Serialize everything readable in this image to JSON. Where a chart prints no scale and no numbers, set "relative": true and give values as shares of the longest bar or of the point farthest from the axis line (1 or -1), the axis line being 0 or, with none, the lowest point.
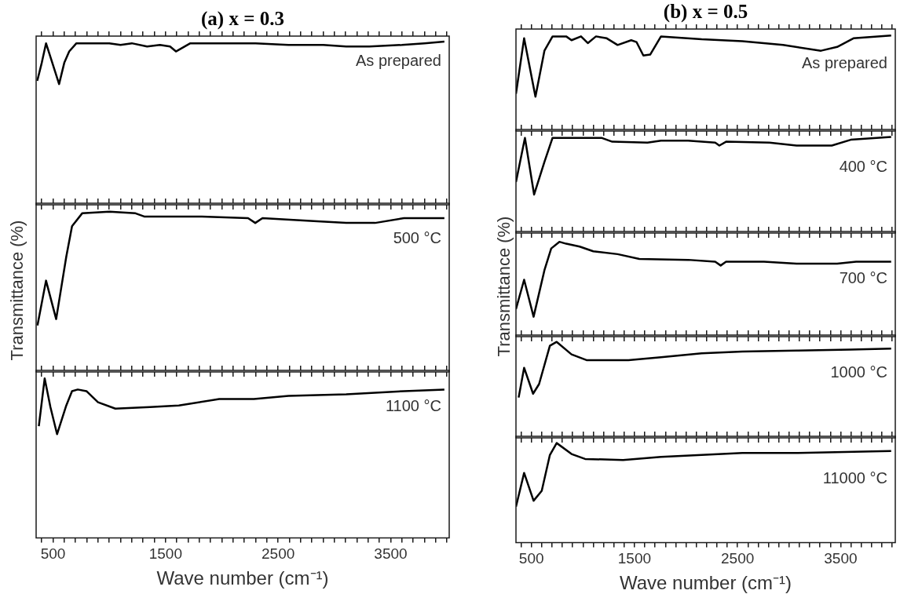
{
  "chart_data": [
    {
      "type": "line",
      "title": "(a) x = 0.3",
      "relative": true,
      "color": "#000000",
      "annotations": [
        "As prepared"
      ],
      "xlim": [
        350,
        4020
      ],
      "tick_labels": false,
      "x": [
        360,
        400,
        438,
        480,
        554,
        600,
        644,
        708,
        800,
        1000,
        1100,
        1200,
        1336,
        1450,
        1540,
        1592,
        1720,
        1977,
        2300,
        2592,
        2900,
        3105,
        3310,
        3600,
        3800,
        3977
      ],
      "values": [
        0.76,
        0.87,
        0.99,
        0.9,
        0.74,
        0.87,
        0.94,
        0.99,
        0.99,
        0.99,
        0.98,
        0.99,
        0.97,
        0.98,
        0.97,
        0.94,
        0.99,
        0.99,
        0.99,
        0.98,
        0.98,
        0.97,
        0.97,
        0.98,
        0.99,
        1
      ],
      "xticks": [
        {
          "value": 400,
          "label": null
        },
        500,
        {
          "value": 600,
          "label": null
        },
        {
          "value": 700,
          "label": null
        },
        {
          "value": 800,
          "label": null
        },
        {
          "value": 900,
          "label": null
        },
        {
          "value": 1000,
          "label": null
        },
        {
          "value": 1100,
          "label": null
        },
        {
          "value": 1200,
          "label": null
        },
        {
          "value": 1300,
          "label": null
        },
        {
          "value": 1400,
          "label": null
        },
        1500,
        {
          "value": 1600,
          "label": null
        },
        {
          "value": 1700,
          "label": null
        },
        {
          "value": 1800,
          "label": null
        },
        {
          "value": 1900,
          "label": null
        },
        {
          "value": 2000,
          "label": null
        },
        {
          "value": 2100,
          "label": null
        },
        {
          "value": 2200,
          "label": null
        },
        {
          "value": 2300,
          "label": null
        },
        {
          "value": 2400,
          "label": null
        },
        2500,
        {
          "value": 2600,
          "label": null
        },
        {
          "value": 2700,
          "label": null
        },
        {
          "value": 2800,
          "label": null
        },
        {
          "value": 2900,
          "label": null
        },
        {
          "value": 3000,
          "label": null
        },
        {
          "value": 3100,
          "label": null
        },
        {
          "value": 3200,
          "label": null
        },
        {
          "value": 3300,
          "label": null
        },
        {
          "value": 3400,
          "label": null
        },
        3500,
        {
          "value": 3600,
          "label": null
        },
        {
          "value": 3700,
          "label": null
        },
        {
          "value": 3800,
          "label": null
        },
        {
          "value": 3900,
          "label": null
        },
        {
          "value": 4000,
          "label": null
        }
      ]
    },
    {
      "type": "line",
      "ylabel": "Transmittance (%)",
      "relative": true,
      "color": "#000000",
      "annotations": [
        "500 °C"
      ],
      "xlim": [
        350,
        4020
      ],
      "tick_labels": false,
      "x": [
        362,
        438,
        528,
        618,
        669,
        759,
        1002,
        1233,
        1310,
        1823,
        2233,
        2297,
        2361,
        2848,
        3105,
        3361,
        3618,
        3977
      ],
      "values": [
        0.29,
        0.57,
        0.33,
        0.72,
        0.91,
        0.99,
        1,
        0.99,
        0.97,
        0.97,
        0.96,
        0.93,
        0.96,
        0.94,
        0.93,
        0.93,
        0.96,
        0.96
      ],
      "xticks": [
        {
          "value": 400,
          "label": null
        },
        500,
        {
          "value": 600,
          "label": null
        },
        {
          "value": 700,
          "label": null
        },
        {
          "value": 800,
          "label": null
        },
        {
          "value": 900,
          "label": null
        },
        {
          "value": 1000,
          "label": null
        },
        {
          "value": 1100,
          "label": null
        },
        {
          "value": 1200,
          "label": null
        },
        {
          "value": 1300,
          "label": null
        },
        {
          "value": 1400,
          "label": null
        },
        1500,
        {
          "value": 1600,
          "label": null
        },
        {
          "value": 1700,
          "label": null
        },
        {
          "value": 1800,
          "label": null
        },
        {
          "value": 1900,
          "label": null
        },
        {
          "value": 2000,
          "label": null
        },
        {
          "value": 2100,
          "label": null
        },
        {
          "value": 2200,
          "label": null
        },
        {
          "value": 2300,
          "label": null
        },
        {
          "value": 2400,
          "label": null
        },
        2500,
        {
          "value": 2600,
          "label": null
        },
        {
          "value": 2700,
          "label": null
        },
        {
          "value": 2800,
          "label": null
        },
        {
          "value": 2900,
          "label": null
        },
        {
          "value": 3000,
          "label": null
        },
        {
          "value": 3100,
          "label": null
        },
        {
          "value": 3200,
          "label": null
        },
        {
          "value": 3300,
          "label": null
        },
        {
          "value": 3400,
          "label": null
        },
        3500,
        {
          "value": 3600,
          "label": null
        },
        {
          "value": 3700,
          "label": null
        },
        {
          "value": 3800,
          "label": null
        },
        {
          "value": 3900,
          "label": null
        },
        {
          "value": 4000,
          "label": null
        }
      ]
    },
    {
      "type": "line",
      "xlabel": "Wave number (cm⁻¹)",
      "relative": true,
      "color": "#000000",
      "annotations": [
        "1100 °C"
      ],
      "xlim": [
        350,
        4020
      ],
      "tick_labels": "x",
      "x": [
        374,
        426,
        477,
        536,
        618,
        669,
        720,
        797,
        900,
        1054,
        1361,
        1618,
        1977,
        2284,
        2592,
        3105,
        3618,
        3977
      ],
      "values": [
        0.7,
        1,
        0.82,
        0.65,
        0.83,
        0.92,
        0.93,
        0.92,
        0.85,
        0.81,
        0.82,
        0.83,
        0.87,
        0.87,
        0.89,
        0.9,
        0.92,
        0.93
      ],
      "xticks": [
        {
          "value": 400,
          "label": null
        },
        500,
        {
          "value": 600,
          "label": null
        },
        {
          "value": 700,
          "label": null
        },
        {
          "value": 800,
          "label": null
        },
        {
          "value": 900,
          "label": null
        },
        {
          "value": 1000,
          "label": null
        },
        {
          "value": 1100,
          "label": null
        },
        {
          "value": 1200,
          "label": null
        },
        {
          "value": 1300,
          "label": null
        },
        {
          "value": 1400,
          "label": null
        },
        1500,
        {
          "value": 1600,
          "label": null
        },
        {
          "value": 1700,
          "label": null
        },
        {
          "value": 1800,
          "label": null
        },
        {
          "value": 1900,
          "label": null
        },
        {
          "value": 2000,
          "label": null
        },
        {
          "value": 2100,
          "label": null
        },
        {
          "value": 2200,
          "label": null
        },
        {
          "value": 2300,
          "label": null
        },
        {
          "value": 2400,
          "label": null
        },
        2500,
        {
          "value": 2600,
          "label": null
        },
        {
          "value": 2700,
          "label": null
        },
        {
          "value": 2800,
          "label": null
        },
        {
          "value": 2900,
          "label": null
        },
        {
          "value": 3000,
          "label": null
        },
        {
          "value": 3100,
          "label": null
        },
        {
          "value": 3200,
          "label": null
        },
        {
          "value": 3300,
          "label": null
        },
        {
          "value": 3400,
          "label": null
        },
        3500,
        {
          "value": 3600,
          "label": null
        },
        {
          "value": 3700,
          "label": null
        },
        {
          "value": 3800,
          "label": null
        },
        {
          "value": 3900,
          "label": null
        },
        {
          "value": 4000,
          "label": null
        }
      ]
    },
    {
      "type": "line",
      "title": "(b) x = 0.5",
      "relative": true,
      "color": "#000000",
      "annotations": [
        "As prepared"
      ],
      "xlim": [
        350,
        4030
      ],
      "tick_labels": false,
      "x": [
        350,
        429,
        539,
        626,
        705,
        837,
        889,
        981,
        1047,
        1126,
        1231,
        1336,
        1468,
        1520,
        1586,
        1652,
        1757,
        2152,
        2546,
        2941,
        3309,
        3466,
        3624,
        3990
      ],
      "values": [
        0.39,
        0.97,
        0.36,
        0.84,
        0.99,
        0.99,
        0.95,
        0.99,
        0.92,
        0.99,
        0.97,
        0.9,
        0.95,
        0.93,
        0.79,
        0.8,
        0.99,
        0.96,
        0.94,
        0.9,
        0.84,
        0.88,
        0.97,
        1
      ],
      "xticks": [
        {
          "value": 400,
          "label": null
        },
        500,
        {
          "value": 600,
          "label": null
        },
        {
          "value": 700,
          "label": null
        },
        {
          "value": 800,
          "label": null
        },
        {
          "value": 900,
          "label": null
        },
        {
          "value": 1000,
          "label": null
        },
        {
          "value": 1100,
          "label": null
        },
        {
          "value": 1200,
          "label": null
        },
        {
          "value": 1300,
          "label": null
        },
        {
          "value": 1400,
          "label": null
        },
        1500,
        {
          "value": 1600,
          "label": null
        },
        {
          "value": 1700,
          "label": null
        },
        {
          "value": 1800,
          "label": null
        },
        {
          "value": 1900,
          "label": null
        },
        {
          "value": 2000,
          "label": null
        },
        {
          "value": 2100,
          "label": null
        },
        {
          "value": 2200,
          "label": null
        },
        {
          "value": 2300,
          "label": null
        },
        {
          "value": 2400,
          "label": null
        },
        2500,
        {
          "value": 2600,
          "label": null
        },
        {
          "value": 2700,
          "label": null
        },
        {
          "value": 2800,
          "label": null
        },
        {
          "value": 2900,
          "label": null
        },
        {
          "value": 3000,
          "label": null
        },
        {
          "value": 3100,
          "label": null
        },
        {
          "value": 3200,
          "label": null
        },
        {
          "value": 3300,
          "label": null
        },
        {
          "value": 3400,
          "label": null
        },
        3500,
        {
          "value": 3600,
          "label": null
        },
        {
          "value": 3700,
          "label": null
        },
        {
          "value": 3800,
          "label": null
        },
        {
          "value": 3900,
          "label": null
        },
        {
          "value": 4000,
          "label": null
        }
      ]
    },
    {
      "type": "line",
      "relative": true,
      "color": "#000000",
      "annotations": [
        "400 °C"
      ],
      "xlim": [
        350,
        4030
      ],
      "tick_labels": false,
      "x": [
        350,
        437,
        526,
        626,
        705,
        968,
        1179,
        1284,
        1626,
        1757,
        2020,
        2283,
        2323,
        2388,
        2809,
        3072,
        3414,
        3598,
        3990
      ],
      "values": [
        0.53,
        0.99,
        0.4,
        0.74,
        0.99,
        0.99,
        0.99,
        0.95,
        0.94,
        0.96,
        0.96,
        0.94,
        0.91,
        0.95,
        0.94,
        0.91,
        0.91,
        0.97,
        1
      ],
      "xticks": [
        {
          "value": 400,
          "label": null
        },
        500,
        {
          "value": 600,
          "label": null
        },
        {
          "value": 700,
          "label": null
        },
        {
          "value": 800,
          "label": null
        },
        {
          "value": 900,
          "label": null
        },
        {
          "value": 1000,
          "label": null
        },
        {
          "value": 1100,
          "label": null
        },
        {
          "value": 1200,
          "label": null
        },
        {
          "value": 1300,
          "label": null
        },
        {
          "value": 1400,
          "label": null
        },
        1500,
        {
          "value": 1600,
          "label": null
        },
        {
          "value": 1700,
          "label": null
        },
        {
          "value": 1800,
          "label": null
        },
        {
          "value": 1900,
          "label": null
        },
        {
          "value": 2000,
          "label": null
        },
        {
          "value": 2100,
          "label": null
        },
        {
          "value": 2200,
          "label": null
        },
        {
          "value": 2300,
          "label": null
        },
        {
          "value": 2400,
          "label": null
        },
        2500,
        {
          "value": 2600,
          "label": null
        },
        {
          "value": 2700,
          "label": null
        },
        {
          "value": 2800,
          "label": null
        },
        {
          "value": 2900,
          "label": null
        },
        {
          "value": 3000,
          "label": null
        },
        {
          "value": 3100,
          "label": null
        },
        {
          "value": 3200,
          "label": null
        },
        {
          "value": 3300,
          "label": null
        },
        {
          "value": 3400,
          "label": null
        },
        3500,
        {
          "value": 3600,
          "label": null
        },
        {
          "value": 3700,
          "label": null
        },
        {
          "value": 3800,
          "label": null
        },
        {
          "value": 3900,
          "label": null
        },
        {
          "value": 4000,
          "label": null
        }
      ]
    },
    {
      "type": "line",
      "ylabel": "Transmittance (%)",
      "relative": true,
      "color": "#000000",
      "annotations": [
        "700 °C"
      ],
      "xlim": [
        350,
        4030
      ],
      "tick_labels": false,
      "x": [
        350,
        429,
        521,
        626,
        692,
        771,
        837,
        968,
        1100,
        1336,
        1547,
        2020,
        2283,
        2336,
        2388,
        2756,
        3072,
        3466,
        3650,
        3990
      ],
      "values": [
        0.29,
        0.6,
        0.21,
        0.7,
        0.93,
        1,
        0.98,
        0.95,
        0.9,
        0.87,
        0.82,
        0.81,
        0.79,
        0.75,
        0.79,
        0.79,
        0.77,
        0.77,
        0.79,
        0.79
      ],
      "xticks": [
        {
          "value": 400,
          "label": null
        },
        500,
        {
          "value": 600,
          "label": null
        },
        {
          "value": 700,
          "label": null
        },
        {
          "value": 800,
          "label": null
        },
        {
          "value": 900,
          "label": null
        },
        {
          "value": 1000,
          "label": null
        },
        {
          "value": 1100,
          "label": null
        },
        {
          "value": 1200,
          "label": null
        },
        {
          "value": 1300,
          "label": null
        },
        {
          "value": 1400,
          "label": null
        },
        1500,
        {
          "value": 1600,
          "label": null
        },
        {
          "value": 1700,
          "label": null
        },
        {
          "value": 1800,
          "label": null
        },
        {
          "value": 1900,
          "label": null
        },
        {
          "value": 2000,
          "label": null
        },
        {
          "value": 2100,
          "label": null
        },
        {
          "value": 2200,
          "label": null
        },
        {
          "value": 2300,
          "label": null
        },
        {
          "value": 2400,
          "label": null
        },
        2500,
        {
          "value": 2600,
          "label": null
        },
        {
          "value": 2700,
          "label": null
        },
        {
          "value": 2800,
          "label": null
        },
        {
          "value": 2900,
          "label": null
        },
        {
          "value": 3000,
          "label": null
        },
        {
          "value": 3100,
          "label": null
        },
        {
          "value": 3200,
          "label": null
        },
        {
          "value": 3300,
          "label": null
        },
        {
          "value": 3400,
          "label": null
        },
        3500,
        {
          "value": 3600,
          "label": null
        },
        {
          "value": 3700,
          "label": null
        },
        {
          "value": 3800,
          "label": null
        },
        {
          "value": 3900,
          "label": null
        },
        {
          "value": 4000,
          "label": null
        }
      ]
    },
    {
      "type": "line",
      "relative": true,
      "color": "#000000",
      "annotations": [
        "1000 °C"
      ],
      "xlim": [
        350,
        4030
      ],
      "tick_labels": false,
      "x": [
        376,
        429,
        516,
        574,
        679,
        745,
        889,
        1034,
        1441,
        1757,
        2152,
        2546,
        3072,
        3598,
        3990
      ],
      "values": [
        0.42,
        0.73,
        0.46,
        0.56,
        0.96,
        1,
        0.87,
        0.81,
        0.81,
        0.84,
        0.88,
        0.9,
        0.91,
        0.92,
        0.93
      ],
      "xticks": [
        {
          "value": 400,
          "label": null
        },
        500,
        {
          "value": 600,
          "label": null
        },
        {
          "value": 700,
          "label": null
        },
        {
          "value": 800,
          "label": null
        },
        {
          "value": 900,
          "label": null
        },
        {
          "value": 1000,
          "label": null
        },
        {
          "value": 1100,
          "label": null
        },
        {
          "value": 1200,
          "label": null
        },
        {
          "value": 1300,
          "label": null
        },
        {
          "value": 1400,
          "label": null
        },
        1500,
        {
          "value": 1600,
          "label": null
        },
        {
          "value": 1700,
          "label": null
        },
        {
          "value": 1800,
          "label": null
        },
        {
          "value": 1900,
          "label": null
        },
        {
          "value": 2000,
          "label": null
        },
        {
          "value": 2100,
          "label": null
        },
        {
          "value": 2200,
          "label": null
        },
        {
          "value": 2300,
          "label": null
        },
        {
          "value": 2400,
          "label": null
        },
        2500,
        {
          "value": 2600,
          "label": null
        },
        {
          "value": 2700,
          "label": null
        },
        {
          "value": 2800,
          "label": null
        },
        {
          "value": 2900,
          "label": null
        },
        {
          "value": 3000,
          "label": null
        },
        {
          "value": 3100,
          "label": null
        },
        {
          "value": 3200,
          "label": null
        },
        {
          "value": 3300,
          "label": null
        },
        {
          "value": 3400,
          "label": null
        },
        3500,
        {
          "value": 3600,
          "label": null
        },
        {
          "value": 3700,
          "label": null
        },
        {
          "value": 3800,
          "label": null
        },
        {
          "value": 3900,
          "label": null
        },
        {
          "value": 4000,
          "label": null
        }
      ]
    },
    {
      "type": "line",
      "xlabel": "Wave number (cm⁻¹)",
      "relative": true,
      "color": "#000000",
      "annotations": [
        "11000 °C"
      ],
      "xlim": [
        350,
        4030
      ],
      "tick_labels": "x",
      "x": [
        350,
        429,
        521,
        600,
        679,
        745,
        889,
        1021,
        1389,
        1757,
        2152,
        2546,
        3072,
        3990
      ],
      "values": [
        0.36,
        0.7,
        0.42,
        0.52,
        0.88,
        1,
        0.89,
        0.84,
        0.83,
        0.86,
        0.88,
        0.9,
        0.9,
        0.92
      ],
      "xticks": [
        {
          "value": 400,
          "label": null
        },
        500,
        {
          "value": 600,
          "label": null
        },
        {
          "value": 700,
          "label": null
        },
        {
          "value": 800,
          "label": null
        },
        {
          "value": 900,
          "label": null
        },
        {
          "value": 1000,
          "label": null
        },
        {
          "value": 1100,
          "label": null
        },
        {
          "value": 1200,
          "label": null
        },
        {
          "value": 1300,
          "label": null
        },
        {
          "value": 1400,
          "label": null
        },
        1500,
        {
          "value": 1600,
          "label": null
        },
        {
          "value": 1700,
          "label": null
        },
        {
          "value": 1800,
          "label": null
        },
        {
          "value": 1900,
          "label": null
        },
        {
          "value": 2000,
          "label": null
        },
        {
          "value": 2100,
          "label": null
        },
        {
          "value": 2200,
          "label": null
        },
        {
          "value": 2300,
          "label": null
        },
        {
          "value": 2400,
          "label": null
        },
        2500,
        {
          "value": 2600,
          "label": null
        },
        {
          "value": 2700,
          "label": null
        },
        {
          "value": 2800,
          "label": null
        },
        {
          "value": 2900,
          "label": null
        },
        {
          "value": 3000,
          "label": null
        },
        {
          "value": 3100,
          "label": null
        },
        {
          "value": 3200,
          "label": null
        },
        {
          "value": 3300,
          "label": null
        },
        {
          "value": 3400,
          "label": null
        },
        3500,
        {
          "value": 3600,
          "label": null
        },
        {
          "value": 3700,
          "label": null
        },
        {
          "value": 3800,
          "label": null
        },
        {
          "value": 3900,
          "label": null
        },
        {
          "value": 4000,
          "label": null
        }
      ]
    }
  ]
}
